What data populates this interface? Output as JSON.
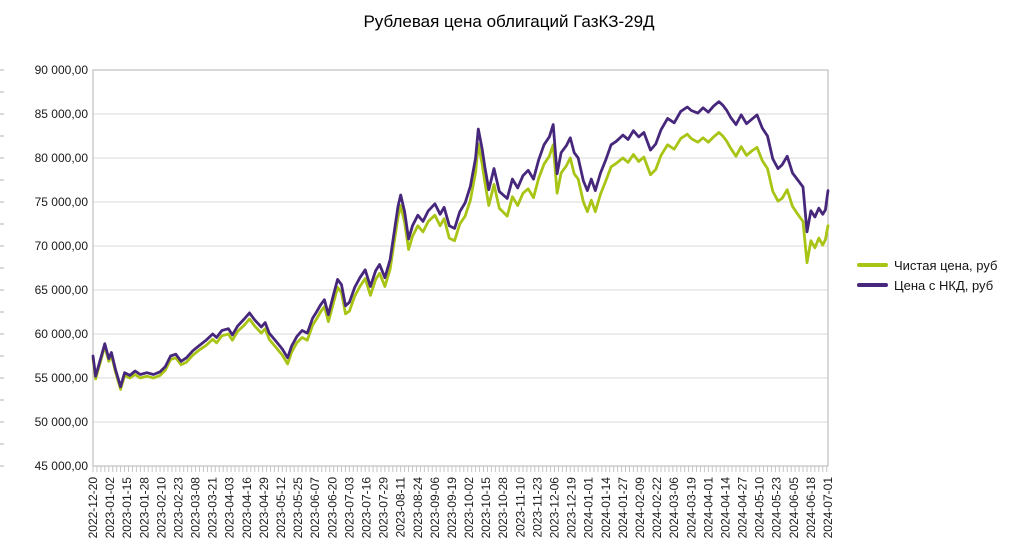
{
  "chart_data": {
    "type": "line",
    "title": "Рублевая цена облигаций ГазКЗ-29Д",
    "xlabel": "",
    "ylabel": "",
    "grid": "horizontal",
    "legend_position": "right",
    "ylim": [
      45000,
      90000
    ],
    "y_ticks": [
      {
        "value": 90000,
        "label": "90 000,00"
      },
      {
        "value": 85000,
        "label": "85 000,00"
      },
      {
        "value": 80000,
        "label": "80 000,00"
      },
      {
        "value": 75000,
        "label": "75 000,00"
      },
      {
        "value": 70000,
        "label": "70 000,00"
      },
      {
        "value": 65000,
        "label": "65 000,00"
      },
      {
        "value": 60000,
        "label": "60 000,00"
      },
      {
        "value": 55000,
        "label": "55 000,00"
      },
      {
        "value": 50000,
        "label": "50 000,00"
      },
      {
        "value": 45000,
        "label": "45 000,00"
      }
    ],
    "x_start_date": "2022-12-20",
    "x_span_days": 559,
    "x_tick_interval_days": 13,
    "x_minor_tick_interval_days": 3,
    "y_minor_tick_interval": 2500,
    "x_tick_labels": [
      "2022-12-20",
      "2023-01-02",
      "2023-01-15",
      "2023-01-28",
      "2023-02-10",
      "2023-02-23",
      "2023-03-08",
      "2023-03-21",
      "2023-04-03",
      "2023-04-16",
      "2023-04-29",
      "2023-05-12",
      "2023-05-25",
      "2023-06-07",
      "2023-06-20",
      "2023-07-03",
      "2023-07-16",
      "2023-07-29",
      "2023-08-11",
      "2023-08-24",
      "2023-09-06",
      "2023-09-19",
      "2023-10-02",
      "2023-10-15",
      "2023-10-28",
      "2023-11-10",
      "2023-11-23",
      "2023-12-06",
      "2023-12-19",
      "2024-01-01",
      "2024-01-14",
      "2024-01-27",
      "2024-02-09",
      "2024-02-22",
      "2024-03-06",
      "2024-03-19",
      "2024-04-01",
      "2024-04-14",
      "2024-04-27",
      "2024-05-10",
      "2024-05-23",
      "2024-06-05",
      "2024-06-18",
      "2024-07-01"
    ],
    "days": [
      0,
      2,
      5,
      9,
      12,
      14,
      17,
      21,
      24,
      28,
      32,
      36,
      41,
      46,
      51,
      55,
      59,
      63,
      67,
      71,
      76,
      81,
      86,
      91,
      94,
      98,
      103,
      106,
      110,
      115,
      119,
      123,
      128,
      131,
      134,
      139,
      144,
      148,
      151,
      155,
      159,
      163,
      167,
      170,
      173,
      176,
      179,
      183,
      186,
      189,
      192,
      195,
      199,
      203,
      207,
      211,
      215,
      218,
      222,
      226,
      229,
      232,
      234,
      237,
      240,
      243,
      247,
      251,
      255,
      260,
      264,
      267,
      271,
      275,
      279,
      283,
      287,
      291,
      293,
      296,
      298,
      301,
      305,
      309,
      315,
      319,
      323,
      327,
      331,
      335,
      339,
      343,
      347,
      350,
      353,
      356,
      360,
      363,
      366,
      369,
      373,
      376,
      379,
      382,
      386,
      390,
      394,
      398,
      403,
      407,
      411,
      415,
      419,
      424,
      428,
      432,
      437,
      442,
      447,
      452,
      455,
      460,
      464,
      468,
      472,
      476,
      479,
      482,
      485,
      489,
      493,
      497,
      501,
      505,
      509,
      513,
      517,
      521,
      524,
      528,
      532,
      536,
      540,
      543,
      546,
      549,
      552,
      555,
      557,
      559
    ],
    "series": [
      {
        "name": "Чистая цена, руб",
        "color": "#a9c414",
        "values": [
          57200,
          54900,
          56500,
          58600,
          56900,
          57600,
          55700,
          53700,
          55300,
          55000,
          55400,
          55000,
          55200,
          55000,
          55300,
          55900,
          57100,
          57300,
          56500,
          56800,
          57600,
          58200,
          58700,
          59400,
          59000,
          59800,
          60000,
          59300,
          60300,
          61000,
          61700,
          60900,
          60100,
          60600,
          59400,
          58500,
          57600,
          56600,
          57900,
          59000,
          59600,
          59300,
          61000,
          61700,
          62500,
          63100,
          61400,
          63600,
          65300,
          64700,
          62300,
          62600,
          64300,
          65400,
          66300,
          64400,
          66200,
          66900,
          65400,
          67400,
          70400,
          73300,
          74600,
          72700,
          69600,
          71100,
          72300,
          71600,
          72800,
          73500,
          72300,
          73100,
          70900,
          70600,
          72500,
          73400,
          75200,
          78400,
          81600,
          79300,
          77300,
          74600,
          77000,
          74300,
          73400,
          75600,
          74600,
          76000,
          76500,
          75500,
          77700,
          79300,
          80200,
          81500,
          76000,
          78300,
          79100,
          80000,
          78200,
          77600,
          75000,
          73900,
          75200,
          73900,
          75900,
          77400,
          79000,
          79400,
          80000,
          79500,
          80400,
          79600,
          80100,
          78100,
          78700,
          80300,
          81500,
          81000,
          82200,
          82700,
          82200,
          81800,
          82300,
          81800,
          82400,
          82900,
          82500,
          81900,
          81100,
          80200,
          81300,
          80300,
          80800,
          81200,
          79700,
          78800,
          76200,
          75100,
          75400,
          76400,
          74500,
          73600,
          72800,
          68100,
          70600,
          69800,
          70900,
          70100,
          70700,
          72300
        ]
      },
      {
        "name": "Цена с НКД, руб",
        "color": "#47277c",
        "values": [
          57500,
          55200,
          56800,
          58900,
          57200,
          57900,
          56000,
          54000,
          55600,
          55300,
          55800,
          55400,
          55600,
          55400,
          55700,
          56300,
          57500,
          57700,
          56900,
          57300,
          58100,
          58700,
          59300,
          60000,
          59600,
          60400,
          60600,
          59900,
          60900,
          61700,
          62400,
          61600,
          60800,
          61300,
          60100,
          59200,
          58300,
          57300,
          58600,
          59700,
          60400,
          60100,
          61800,
          62500,
          63300,
          63900,
          62200,
          64500,
          66200,
          65600,
          63200,
          63600,
          65300,
          66400,
          67300,
          65400,
          67200,
          67900,
          66400,
          68500,
          71500,
          74500,
          75800,
          73900,
          70800,
          72300,
          73500,
          72800,
          74000,
          74800,
          73600,
          74400,
          72300,
          72000,
          73900,
          74900,
          76800,
          80000,
          83300,
          81000,
          79000,
          76400,
          78800,
          76200,
          75400,
          77600,
          76600,
          78000,
          78600,
          77600,
          79800,
          81500,
          82400,
          83800,
          78200,
          80600,
          81400,
          82300,
          80600,
          80000,
          77400,
          76300,
          77600,
          76300,
          78300,
          79800,
          81500,
          81900,
          82600,
          82100,
          83100,
          82400,
          82900,
          80900,
          81600,
          83200,
          84500,
          84000,
          85300,
          85800,
          85400,
          85100,
          85700,
          85200,
          85900,
          86400,
          86000,
          85400,
          84600,
          83800,
          84900,
          83900,
          84400,
          84900,
          83400,
          82500,
          79900,
          78800,
          79200,
          80200,
          78300,
          77500,
          76700,
          71600,
          74000,
          73300,
          74300,
          73600,
          74100,
          76300
        ]
      }
    ],
    "colors": {
      "grid": "#d9d9d9",
      "border": "#b3b3b3",
      "minor_tick": "#c6c6c6",
      "axis_text": "#1a1a1a",
      "background": "#ffffff"
    }
  }
}
